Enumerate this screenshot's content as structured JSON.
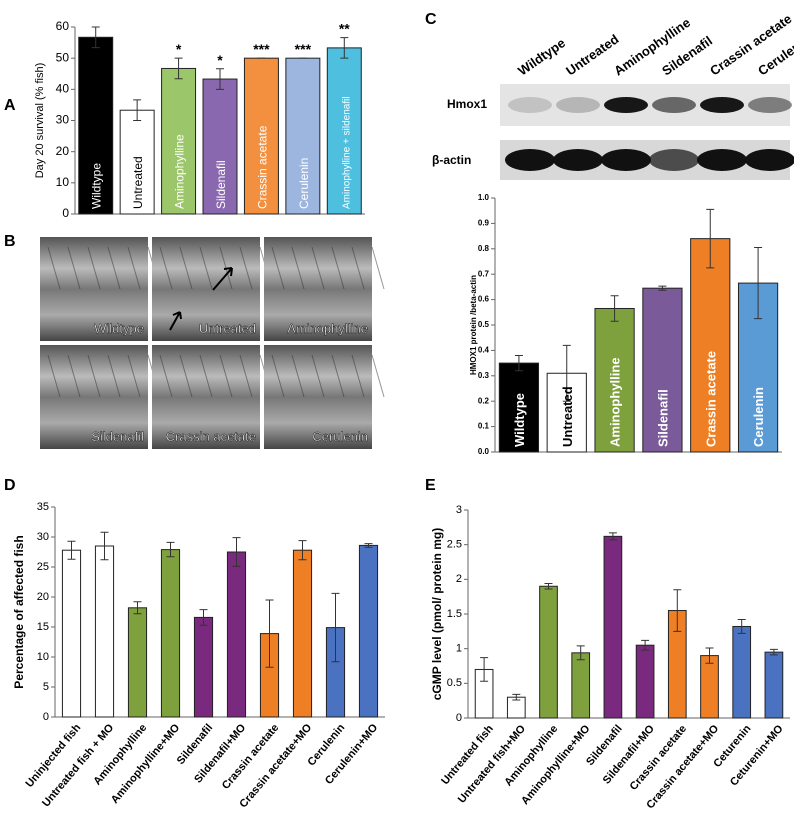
{
  "chart_data": [
    {
      "type": "bar",
      "panel": "A",
      "y_label": "Day 20 survival (% fish)",
      "labels_inside": true,
      "categories": [
        "Wildtype",
        "Untreated",
        "Aminophylline",
        "Sildenafil",
        "Crassin acetate",
        "Cerulenin",
        "Aminophylline + sildenafil"
      ],
      "values": [
        56.7,
        33.3,
        46.7,
        43.3,
        50,
        50,
        53.3
      ],
      "errors": [
        3.3,
        3.3,
        3.3,
        3.3,
        0,
        0,
        3.3
      ],
      "annotations": [
        null,
        null,
        "*",
        "*",
        "***",
        "***",
        "**"
      ],
      "colors": [
        "#000000",
        "#ffffff",
        "#9cc66a",
        "#8a68b0",
        "#f2903f",
        "#9db6df",
        "#4fbfe0"
      ],
      "ylim": [
        0,
        60
      ],
      "yticks": [
        0,
        10,
        20,
        30,
        40,
        50,
        60
      ]
    },
    {
      "type": "bar",
      "y_label": "HMOX1 protein /beta-actin",
      "labels_inside": true,
      "categories": [
        "Wildtype",
        "Untreated",
        "Aminophylline",
        "Sildenafil",
        "Crassin acetate",
        "Cerulenin"
      ],
      "values": [
        0.35,
        0.31,
        0.565,
        0.645,
        0.84,
        0.665
      ],
      "errors": [
        0.03,
        0.11,
        0.05,
        0.008,
        0.115,
        0.14
      ],
      "colors": [
        "#000000",
        "#ffffff",
        "#7ea13e",
        "#7a5a98",
        "#ee7f24",
        "#5b9bd5"
      ],
      "ylim": [
        0,
        1
      ],
      "yticks": [
        {
          "value": 0,
          "label": "0.0"
        },
        0.1,
        0.2,
        0.3,
        0.4,
        0.5,
        0.6,
        0.7,
        0.8,
        0.9,
        {
          "value": 1,
          "label": "1.0"
        }
      ]
    },
    {
      "type": "bar",
      "panel": "D",
      "y_label": "Percentage of affected fish",
      "categories": [
        "Uninjected fish",
        "Untreated fish + MO",
        "Aminophylline",
        "Aminophylline+MO",
        "Sildenafil",
        "Sildenafil+MO",
        "Crassin acetate",
        "Crassin acetate+MO",
        "Cerulenin",
        "Cerulenin+MO"
      ],
      "values": [
        27.8,
        28.5,
        18.2,
        27.9,
        16.6,
        27.5,
        13.9,
        27.8,
        14.9,
        28.6
      ],
      "errors": [
        1.5,
        2.3,
        1,
        1.2,
        1.3,
        2.4,
        5.6,
        1.6,
        5.7,
        0.3
      ],
      "colors": [
        "#ffffff",
        "#ffffff",
        "#7ea13e",
        "#7ea13e",
        "#7a2a7e",
        "#7a2a7e",
        "#ee7f24",
        "#ee7f24",
        "#4a72c0",
        "#4a72c0"
      ],
      "ylim": [
        0,
        35
      ],
      "yticks": [
        0,
        5,
        10,
        15,
        20,
        25,
        30,
        35
      ]
    },
    {
      "type": "bar",
      "panel": "E",
      "y_label": "cGMP level (pmol/ protein mg)",
      "categories": [
        "Untreated fish",
        "Untreated fish+MO",
        "Aminophylline",
        "Aminophylline+MO",
        "Sildenafil",
        "Sildenafil+MO",
        "Crassin acetate",
        "Crassin acetate+MO",
        "Ceturenin",
        "Ceturenin+MO"
      ],
      "values": [
        0.7,
        0.3,
        1.9,
        0.94,
        2.62,
        1.05,
        1.55,
        0.9,
        1.32,
        0.95
      ],
      "errors": [
        0.17,
        0.04,
        0.04,
        0.1,
        0.05,
        0.07,
        0.3,
        0.11,
        0.1,
        0.04
      ],
      "colors": [
        "#ffffff",
        "#ffffff",
        "#7ea13e",
        "#7ea13e",
        "#7a2a7e",
        "#7a2a7e",
        "#ee7f24",
        "#ee7f24",
        "#4a72c0",
        "#4a72c0"
      ],
      "ylim": [
        0,
        3
      ],
      "yticks": [
        0,
        0.5,
        1,
        1.5,
        2,
        2.5,
        3
      ]
    }
  ],
  "panel_b": {
    "panel": "B",
    "images": [
      "Wildtype",
      "Untreated",
      "Aminophylline",
      "Sildenafil",
      "Crassin acetate",
      "Cerulenin"
    ]
  },
  "blot": {
    "panel": "C",
    "rows": [
      "Hmox1",
      "β-actin"
    ],
    "lanes": [
      "Wildtype",
      "Untreated",
      "Aminophylline",
      "Sildenafil",
      "Crassin acetate",
      "Cerulenin"
    ]
  }
}
